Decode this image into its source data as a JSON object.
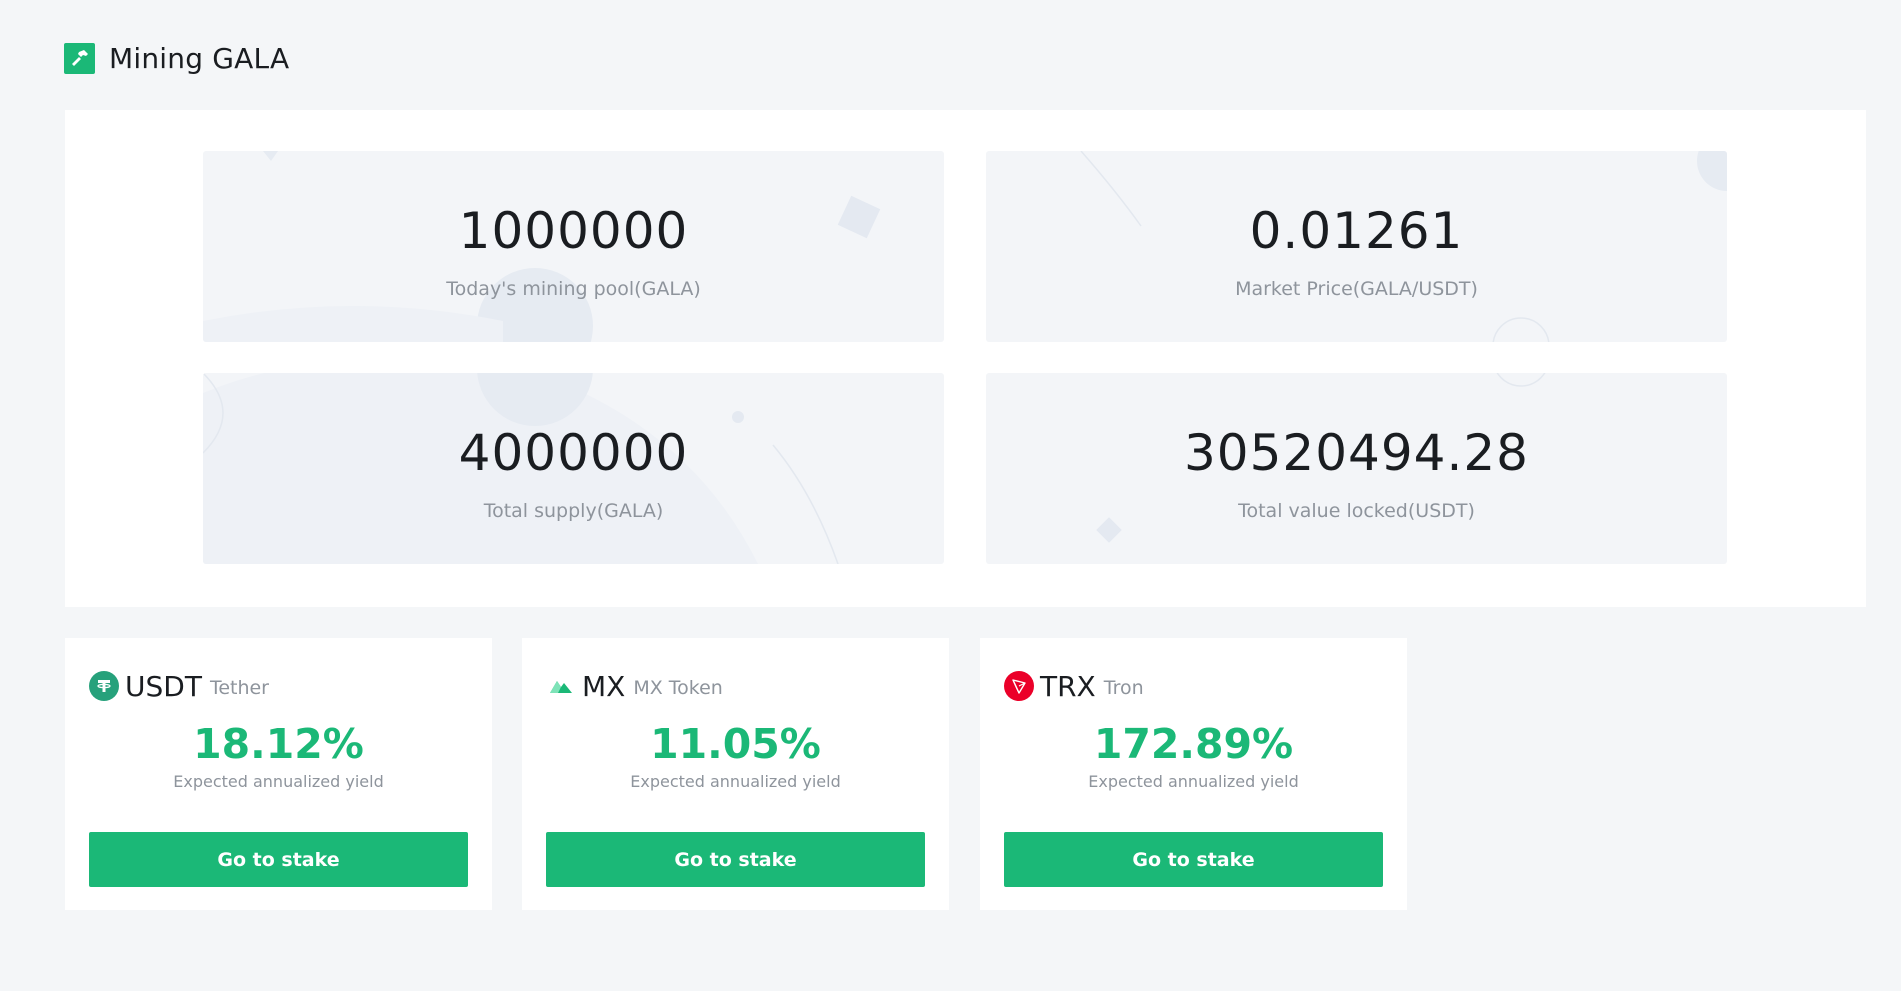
{
  "header": {
    "title": "Mining GALA",
    "icon": "hammer-icon"
  },
  "colors": {
    "accent": "#1bb877",
    "background": "#f4f6f8",
    "card": "#ffffff",
    "stat_card": "#f3f5f8",
    "muted_text": "#8e949c",
    "usdt": "#26a17b",
    "trx": "#eb0029"
  },
  "stats": [
    {
      "value": "1000000",
      "label": "Today's mining pool(GALA)"
    },
    {
      "value": "0.01261",
      "label": "Market Price(GALA/USDT)"
    },
    {
      "value": "4000000",
      "label": "Total supply(GALA)"
    },
    {
      "value": "30520494.28",
      "label": "Total value locked(USDT)"
    }
  ],
  "pools": [
    {
      "symbol": "USDT",
      "name": "Tether",
      "icon": "tether-icon",
      "yield": "18.12%",
      "yield_label": "Expected annualized yield",
      "button_label": "Go to stake"
    },
    {
      "symbol": "MX",
      "name": "MX Token",
      "icon": "mx-token-icon",
      "yield": "11.05%",
      "yield_label": "Expected annualized yield",
      "button_label": "Go to stake"
    },
    {
      "symbol": "TRX",
      "name": "Tron",
      "icon": "tron-icon",
      "yield": "172.89%",
      "yield_label": "Expected annualized yield",
      "button_label": "Go to stake"
    }
  ]
}
